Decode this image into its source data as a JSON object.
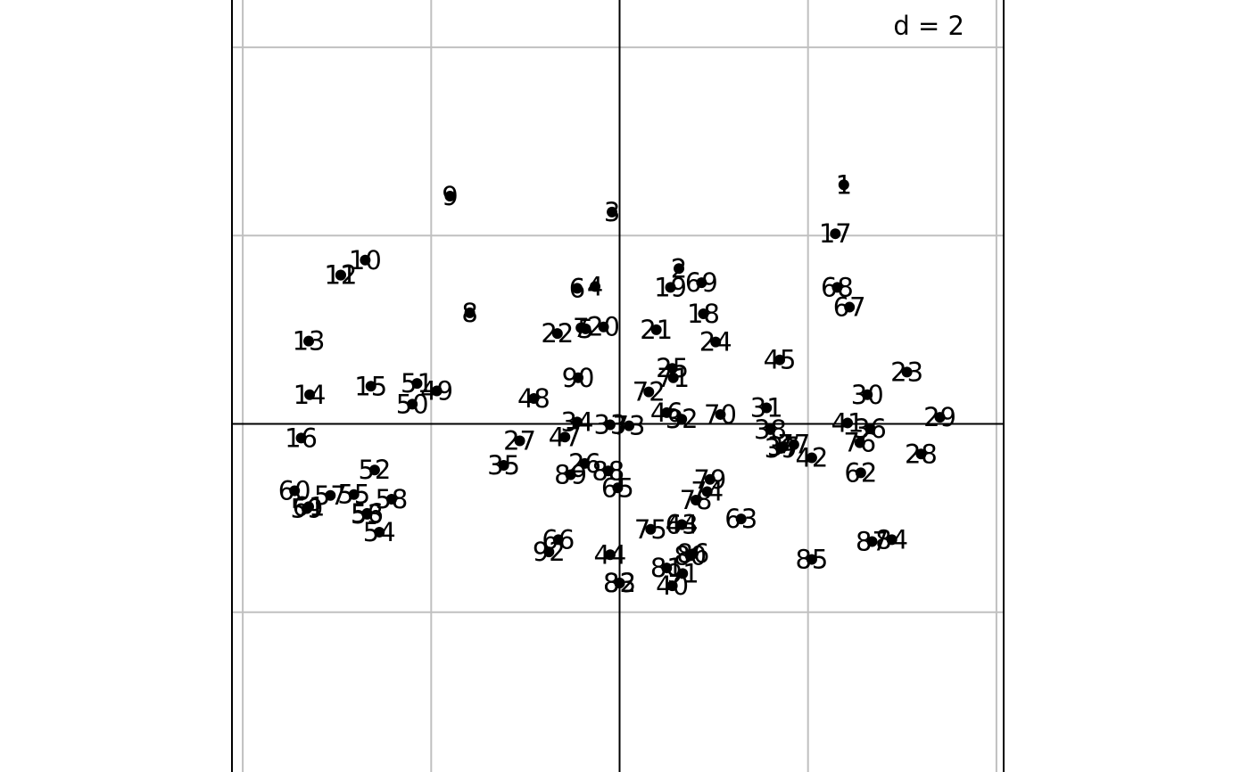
{
  "chart_data": {
    "type": "scatter",
    "title": "",
    "xlabel": "",
    "ylabel": "",
    "scale_label": "d = 2",
    "grid": true,
    "grid_step": 2,
    "axes_cross_at_origin": true,
    "xlim": [
      -4.1,
      4.1
    ],
    "ylim": [
      -4.1,
      4.1
    ],
    "points": [
      {
        "label": "1",
        "x": 2.38,
        "y": 2.54
      },
      {
        "label": "2",
        "x": 0.63,
        "y": 1.65
      },
      {
        "label": "3",
        "x": -0.08,
        "y": 2.25
      },
      {
        "label": "4",
        "x": -0.26,
        "y": 1.46
      },
      {
        "label": "5",
        "x": -0.36,
        "y": 1.01
      },
      {
        "label": "6",
        "x": -0.45,
        "y": 1.44
      },
      {
        "label": "7",
        "x": -0.41,
        "y": 1.02
      },
      {
        "label": "8",
        "x": -1.59,
        "y": 1.18
      },
      {
        "label": "9",
        "x": -1.8,
        "y": 2.42
      },
      {
        "label": "10",
        "x": -2.7,
        "y": 1.74
      },
      {
        "label": "11",
        "x": -2.96,
        "y": 1.58
      },
      {
        "label": "12",
        "x": -2.96,
        "y": 1.58
      },
      {
        "label": "13",
        "x": -3.3,
        "y": 0.88
      },
      {
        "label": "14",
        "x": -3.29,
        "y": 0.31
      },
      {
        "label": "15",
        "x": -2.64,
        "y": 0.4
      },
      {
        "label": "16",
        "x": -3.38,
        "y": -0.15
      },
      {
        "label": "17",
        "x": 2.29,
        "y": 2.02
      },
      {
        "label": "18",
        "x": 0.89,
        "y": 1.17
      },
      {
        "label": "19",
        "x": 0.54,
        "y": 1.45
      },
      {
        "label": "20",
        "x": -0.17,
        "y": 1.03
      },
      {
        "label": "21",
        "x": 0.39,
        "y": 1.0
      },
      {
        "label": "22",
        "x": -0.66,
        "y": 0.96
      },
      {
        "label": "23",
        "x": 3.05,
        "y": 0.55
      },
      {
        "label": "24",
        "x": 1.02,
        "y": 0.87
      },
      {
        "label": "25",
        "x": 0.56,
        "y": 0.59
      },
      {
        "label": "26",
        "x": -0.37,
        "y": -0.42
      },
      {
        "label": "27",
        "x": -1.06,
        "y": -0.18
      },
      {
        "label": "28",
        "x": 3.2,
        "y": -0.32
      },
      {
        "label": "29",
        "x": 3.4,
        "y": 0.07
      },
      {
        "label": "30",
        "x": 2.63,
        "y": 0.31
      },
      {
        "label": "31",
        "x": 1.56,
        "y": 0.17
      },
      {
        "label": "32",
        "x": 0.66,
        "y": 0.05
      },
      {
        "label": "33",
        "x": -0.1,
        "y": -0.01
      },
      {
        "label": "34",
        "x": -0.45,
        "y": 0.02
      },
      {
        "label": "35",
        "x": -1.23,
        "y": -0.44
      },
      {
        "label": "36",
        "x": 2.66,
        "y": -0.05
      },
      {
        "label": "37",
        "x": 1.74,
        "y": -0.24
      },
      {
        "label": "38",
        "x": 1.6,
        "y": -0.06
      },
      {
        "label": "39",
        "x": 1.71,
        "y": -0.26
      },
      {
        "label": "40",
        "x": 0.56,
        "y": -1.72
      },
      {
        "label": "41",
        "x": 2.42,
        "y": 0.01
      },
      {
        "label": "42",
        "x": 2.04,
        "y": -0.36
      },
      {
        "label": "43",
        "x": 0.66,
        "y": -1.07
      },
      {
        "label": "44",
        "x": -0.1,
        "y": -1.39
      },
      {
        "label": "45",
        "x": 1.7,
        "y": 0.68
      },
      {
        "label": "46",
        "x": 0.5,
        "y": 0.12
      },
      {
        "label": "47",
        "x": -0.58,
        "y": -0.14
      },
      {
        "label": "48",
        "x": -0.91,
        "y": 0.27
      },
      {
        "label": "49",
        "x": -1.94,
        "y": 0.35
      },
      {
        "label": "50",
        "x": -2.2,
        "y": 0.21
      },
      {
        "label": "51",
        "x": -2.15,
        "y": 0.43
      },
      {
        "label": "52",
        "x": -2.6,
        "y": -0.49
      },
      {
        "label": "53",
        "x": -2.68,
        "y": -0.96
      },
      {
        "label": "54",
        "x": -2.55,
        "y": -1.15
      },
      {
        "label": "55",
        "x": -2.82,
        "y": -0.75
      },
      {
        "label": "56",
        "x": -2.68,
        "y": -0.95
      },
      {
        "label": "57",
        "x": -3.07,
        "y": -0.76
      },
      {
        "label": "58",
        "x": -2.42,
        "y": -0.8
      },
      {
        "label": "59",
        "x": -3.32,
        "y": -0.9
      },
      {
        "label": "60",
        "x": -3.45,
        "y": -0.71
      },
      {
        "label": "61",
        "x": -3.3,
        "y": -0.88
      },
      {
        "label": "62",
        "x": 2.56,
        "y": -0.52
      },
      {
        "label": "63",
        "x": 1.29,
        "y": -1.01
      },
      {
        "label": "64",
        "x": 0.66,
        "y": -1.07
      },
      {
        "label": "65",
        "x": -0.02,
        "y": -0.68
      },
      {
        "label": "66",
        "x": -0.65,
        "y": -1.23
      },
      {
        "label": "67",
        "x": 2.44,
        "y": 1.24
      },
      {
        "label": "68",
        "x": 2.31,
        "y": 1.45
      },
      {
        "label": "69",
        "x": 0.87,
        "y": 1.5
      },
      {
        "label": "70",
        "x": 1.07,
        "y": 0.1
      },
      {
        "label": "71",
        "x": 0.57,
        "y": 0.49
      },
      {
        "label": "72",
        "x": 0.31,
        "y": 0.34
      },
      {
        "label": "73",
        "x": 0.1,
        "y": -0.02
      },
      {
        "label": "74",
        "x": 0.93,
        "y": -0.72
      },
      {
        "label": "75",
        "x": 0.33,
        "y": -1.12
      },
      {
        "label": "76",
        "x": 2.55,
        "y": -0.2
      },
      {
        "label": "77",
        "x": 1.85,
        "y": -0.22
      },
      {
        "label": "78",
        "x": 0.81,
        "y": -0.81
      },
      {
        "label": "79",
        "x": 0.96,
        "y": -0.59
      },
      {
        "label": "80",
        "x": 0.75,
        "y": -1.4
      },
      {
        "label": "81",
        "x": 0.5,
        "y": -1.53
      },
      {
        "label": "82",
        "x": 0.0,
        "y": -1.69
      },
      {
        "label": "83",
        "x": 0.0,
        "y": -1.69
      },
      {
        "label": "84",
        "x": 2.89,
        "y": -1.23
      },
      {
        "label": "85",
        "x": 2.04,
        "y": -1.44
      },
      {
        "label": "86",
        "x": 0.78,
        "y": -1.38
      },
      {
        "label": "87",
        "x": 2.68,
        "y": -1.25
      },
      {
        "label": "88",
        "x": -0.12,
        "y": -0.5
      },
      {
        "label": "89",
        "x": -0.52,
        "y": -0.54
      },
      {
        "label": "90",
        "x": -0.44,
        "y": 0.49
      },
      {
        "label": "91",
        "x": 0.67,
        "y": -1.59
      },
      {
        "label": "92",
        "x": -0.75,
        "y": -1.36
      }
    ]
  }
}
